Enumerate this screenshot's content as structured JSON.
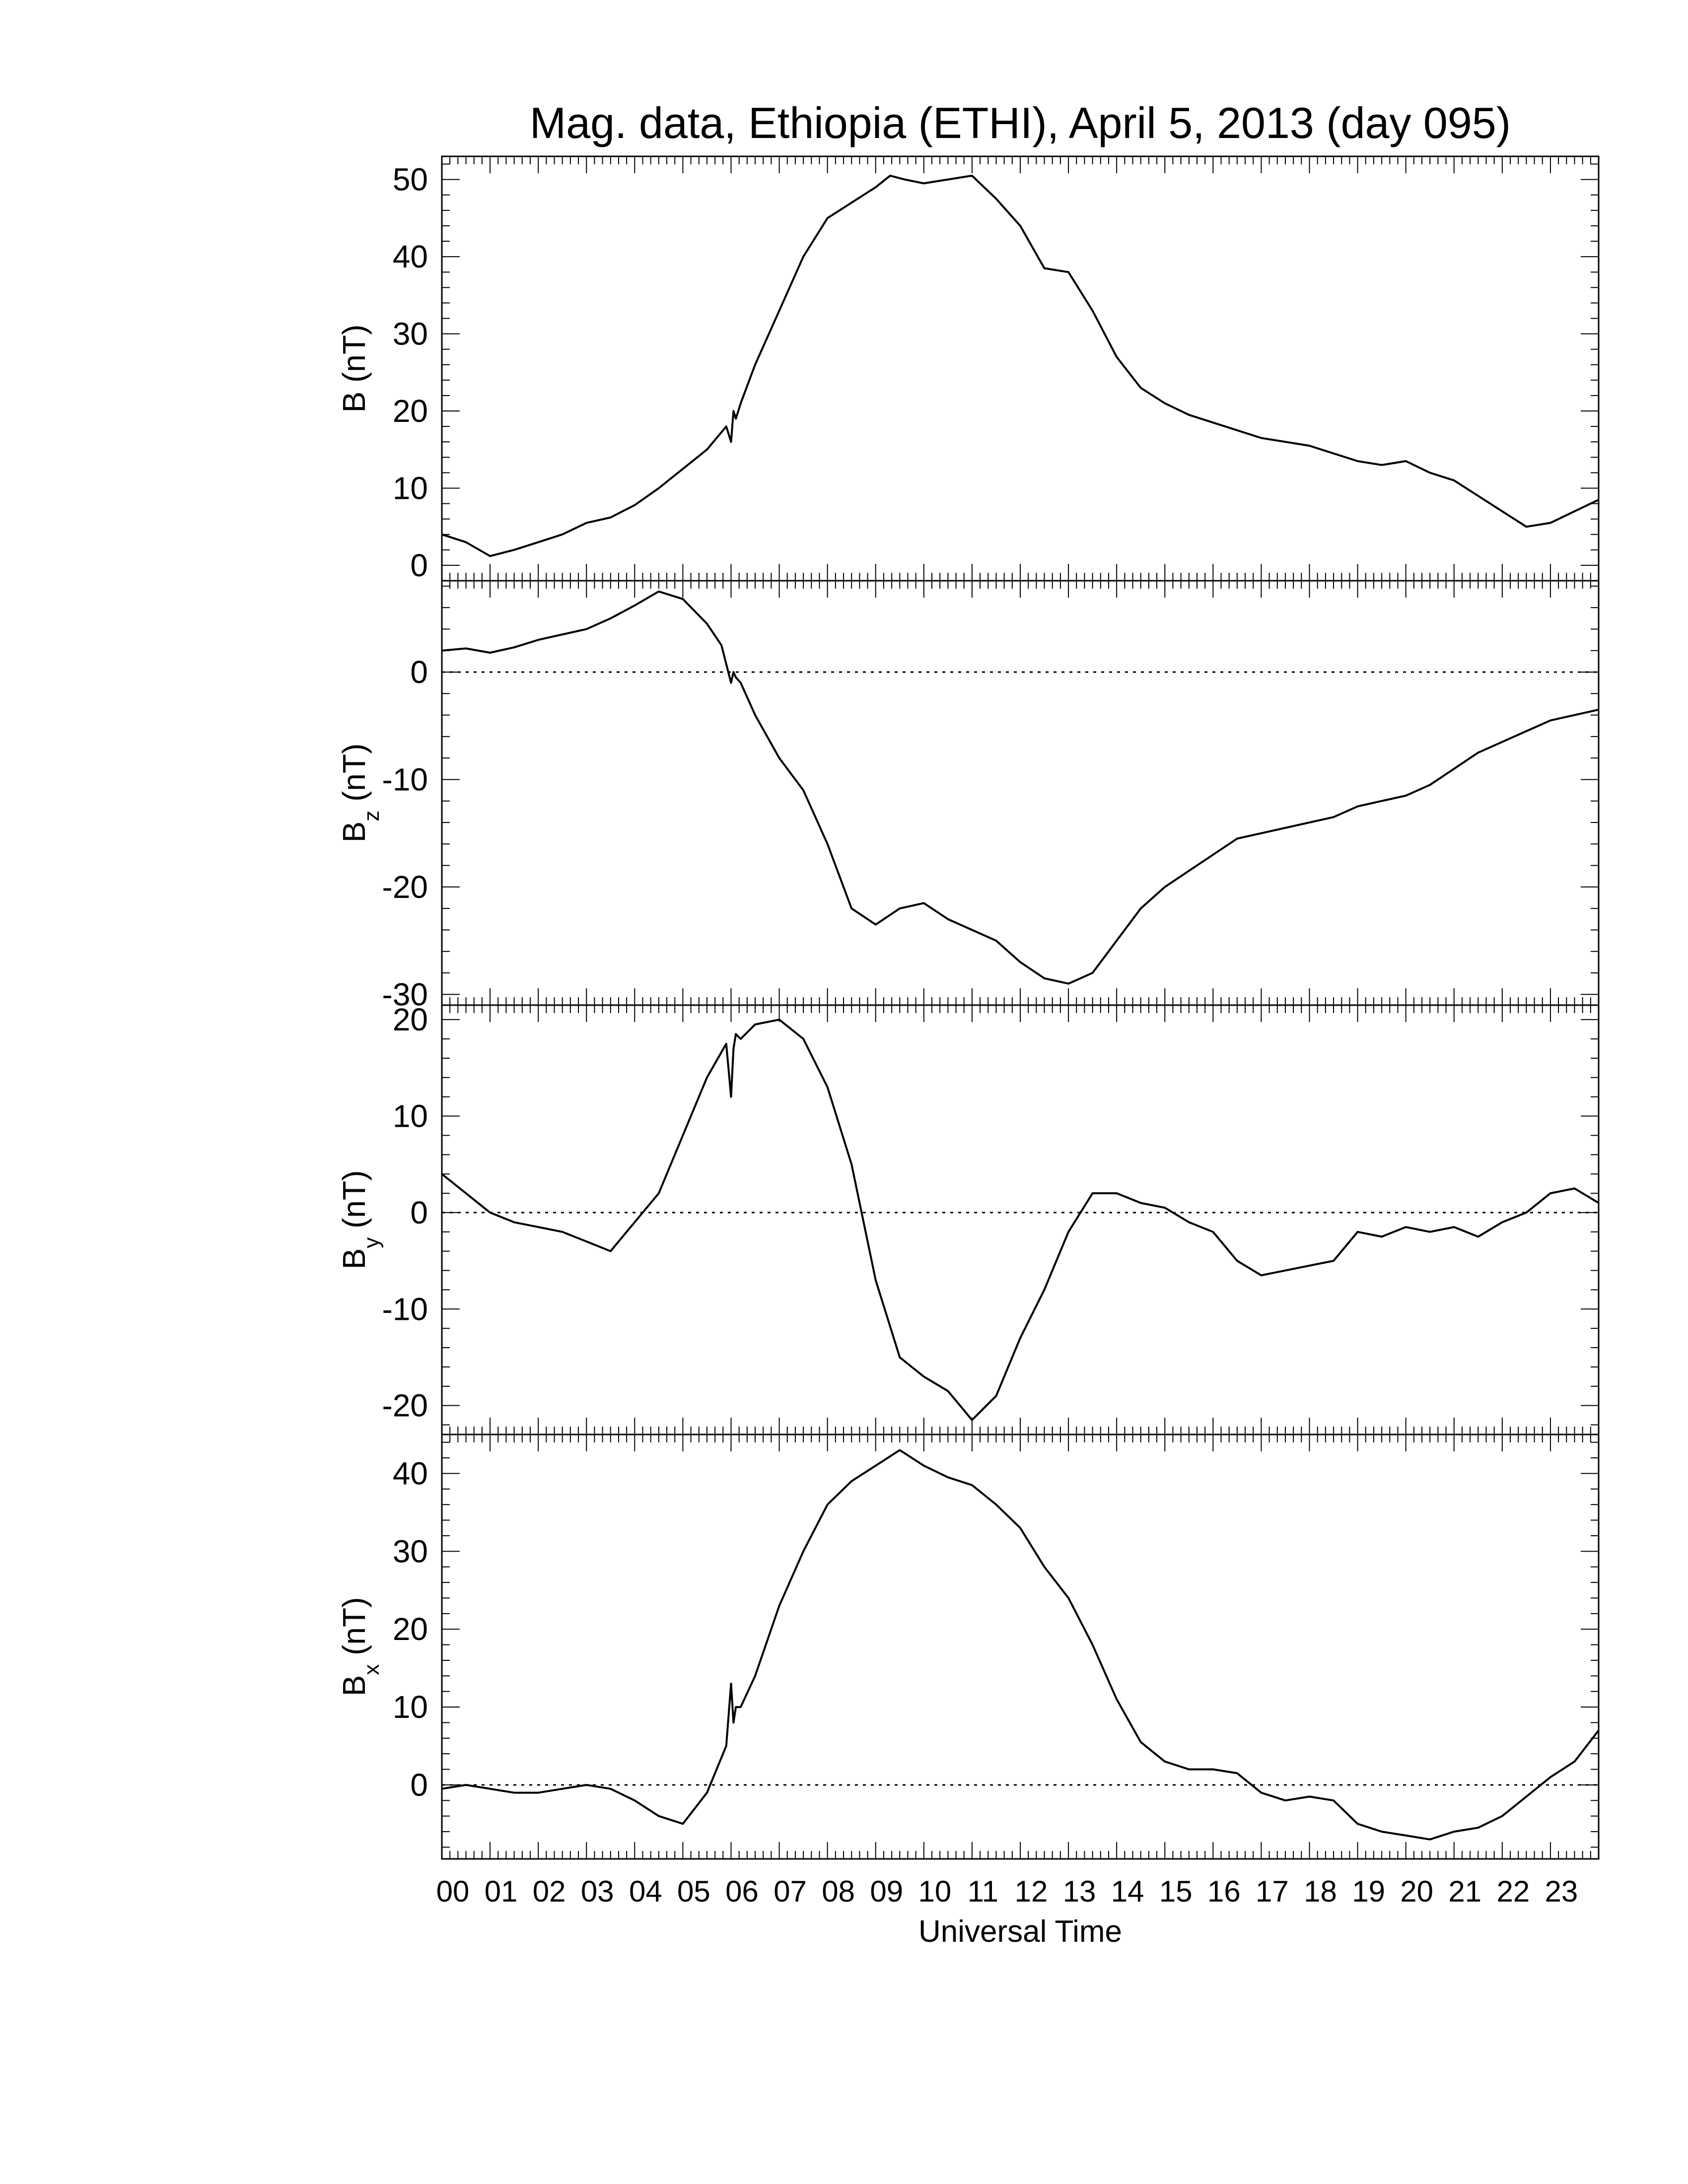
{
  "chart_data": {
    "type": "line",
    "title": "Mag. data, Ethiopia (ETHI), April 5, 2013 (day 095)",
    "xlabel": "Universal Time",
    "x_tick_labels": [
      "00",
      "01",
      "02",
      "03",
      "04",
      "05",
      "06",
      "07",
      "08",
      "09",
      "10",
      "11",
      "12",
      "13",
      "14",
      "15",
      "16",
      "17",
      "18",
      "19",
      "20",
      "21",
      "22",
      "23"
    ],
    "xlim": [
      0,
      24
    ],
    "panels": [
      {
        "id": "B",
        "ylabel": "B (nT)",
        "ylabel_main": "B",
        "ylabel_sub": "",
        "ylabel_unit": " (nT)",
        "ylim": [
          -2,
          53
        ],
        "yticks": [
          0,
          10,
          20,
          30,
          40,
          50
        ],
        "zero_line": false,
        "x": [
          0,
          0.5,
          1,
          1.5,
          2,
          2.5,
          3,
          3.5,
          4,
          4.5,
          5,
          5.5,
          5.9,
          6.0,
          6.05,
          6.1,
          6.2,
          6.5,
          7,
          7.5,
          8,
          8.5,
          9,
          9.3,
          9.6,
          10,
          10.5,
          11,
          11.5,
          12,
          12.5,
          13,
          13.5,
          14,
          14.5,
          15,
          15.5,
          16,
          16.5,
          17,
          17.5,
          18,
          18.5,
          19,
          19.5,
          20,
          20.5,
          21,
          21.5,
          22,
          22.5,
          23,
          23.5,
          24
        ],
        "y": [
          4,
          3,
          1.2,
          2,
          3,
          4,
          5.5,
          6.2,
          7.8,
          10,
          12.5,
          15,
          18,
          16,
          20,
          19,
          21,
          26,
          33,
          40,
          45,
          47,
          49,
          50.5,
          50,
          49.5,
          50,
          50.5,
          47.5,
          44,
          38.5,
          38,
          33,
          27,
          23,
          21,
          19.5,
          18.5,
          17.5,
          16.5,
          16,
          15.5,
          14.5,
          13.5,
          13,
          13.5,
          12,
          11,
          9,
          7,
          5,
          5.5,
          7,
          8.5
        ]
      },
      {
        "id": "Bz",
        "ylabel": "Bz (nT)",
        "ylabel_main": "B",
        "ylabel_sub": "z",
        "ylabel_unit": " (nT)",
        "ylim": [
          -31,
          8.5
        ],
        "yticks": [
          0,
          -10,
          -20,
          -30
        ],
        "zero_line": true,
        "x": [
          0,
          0.5,
          1,
          1.5,
          2,
          2.5,
          3,
          3.5,
          4,
          4.5,
          5,
          5.5,
          5.8,
          6.0,
          6.05,
          6.1,
          6.2,
          6.5,
          7,
          7.5,
          8,
          8.5,
          9,
          9.5,
          10,
          10.5,
          11,
          11.5,
          12,
          12.5,
          13,
          13.5,
          14,
          14.5,
          15,
          15.5,
          16,
          16.5,
          17,
          17.5,
          18,
          18.5,
          19,
          19.5,
          20,
          20.5,
          21,
          21.5,
          22,
          22.5,
          23,
          23.5,
          24
        ],
        "y": [
          2,
          2.2,
          1.8,
          2.3,
          3,
          3.5,
          4,
          5,
          6.2,
          7.5,
          6.8,
          4.5,
          2.5,
          -1,
          0,
          -0.5,
          -1,
          -4,
          -8,
          -11,
          -16,
          -22,
          -23.5,
          -22,
          -21.5,
          -23,
          -24,
          -25,
          -27,
          -28.5,
          -29,
          -28,
          -25,
          -22,
          -20,
          -18.5,
          -17,
          -15.5,
          -15,
          -14.5,
          -14,
          -13.5,
          -12.5,
          -12,
          -11.5,
          -10.5,
          -9,
          -7.5,
          -6.5,
          -5.5,
          -4.5,
          -4,
          -3.5
        ]
      },
      {
        "id": "By",
        "ylabel": "By (nT)",
        "ylabel_main": "B",
        "ylabel_sub": "y",
        "ylabel_unit": " (nT)",
        "ylim": [
          -23,
          21.5
        ],
        "yticks": [
          20,
          10,
          0,
          -10,
          -20
        ],
        "zero_line": true,
        "x": [
          0,
          0.5,
          1,
          1.5,
          2,
          2.5,
          3,
          3.5,
          4,
          4.5,
          5,
          5.5,
          5.9,
          6.0,
          6.05,
          6.1,
          6.2,
          6.5,
          7,
          7.5,
          8,
          8.5,
          9,
          9.5,
          10,
          10.5,
          11,
          11.5,
          12,
          12.5,
          13,
          13.5,
          14,
          14.5,
          15,
          15.5,
          16,
          16.5,
          17,
          17.5,
          18,
          18.5,
          19,
          19.5,
          20,
          20.5,
          21,
          21.5,
          22,
          22.5,
          23,
          23.5,
          24
        ],
        "y": [
          4,
          2,
          0,
          -1,
          -1.5,
          -2,
          -3,
          -4,
          -1,
          2,
          8,
          14,
          17.5,
          12,
          17,
          18.5,
          18,
          19.5,
          20,
          18,
          13,
          5,
          -7,
          -15,
          -17,
          -18.5,
          -21.5,
          -19,
          -13,
          -8,
          -2,
          2,
          2,
          1,
          0.5,
          -1,
          -2,
          -5,
          -6.5,
          -6,
          -5.5,
          -5,
          -2,
          -2.5,
          -1.5,
          -2,
          -1.5,
          -2.5,
          -1,
          0,
          2,
          2.5,
          1
        ]
      },
      {
        "id": "Bx",
        "ylabel": "Bx (nT)",
        "ylabel_main": "B",
        "ylabel_sub": "x",
        "ylabel_unit": " (nT)",
        "ylim": [
          -9.5,
          45
        ],
        "yticks": [
          40,
          30,
          20,
          10,
          0
        ],
        "zero_line": true,
        "x": [
          0,
          0.5,
          1,
          1.5,
          2,
          2.5,
          3,
          3.5,
          4,
          4.5,
          5,
          5.5,
          5.9,
          6.0,
          6.05,
          6.1,
          6.2,
          6.5,
          7,
          7.5,
          8,
          8.5,
          9,
          9.5,
          10,
          10.5,
          11,
          11.5,
          12,
          12.5,
          13,
          13.5,
          14,
          14.5,
          15,
          15.5,
          16,
          16.5,
          17,
          17.5,
          18,
          18.5,
          19,
          19.5,
          20,
          20.5,
          21,
          21.5,
          22,
          22.5,
          23,
          23.5,
          24
        ],
        "y": [
          -0.5,
          0,
          -0.5,
          -1,
          -1,
          -0.5,
          0,
          -0.5,
          -2,
          -4,
          -5,
          -1,
          5,
          13,
          8,
          10,
          10,
          14,
          23,
          30,
          36,
          39,
          41,
          43,
          41,
          39.5,
          38.5,
          36,
          33,
          28,
          24,
          18,
          11,
          5.5,
          3,
          2,
          2,
          1.5,
          -1,
          -2,
          -1.5,
          -2,
          -5,
          -6,
          -6.5,
          -7,
          -6,
          -5.5,
          -4,
          -1.5,
          1,
          3,
          7
        ]
      }
    ],
    "grid": false,
    "legend": "none"
  }
}
